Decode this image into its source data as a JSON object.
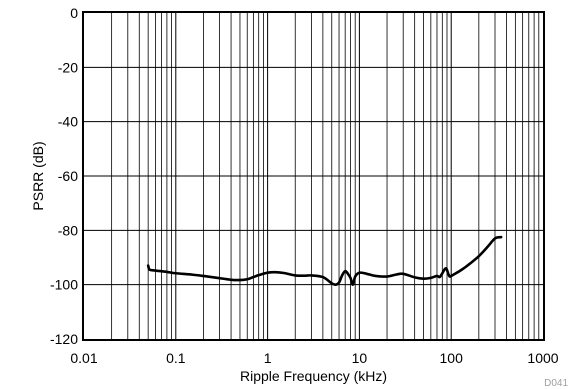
{
  "chart_data": {
    "type": "line",
    "title": "",
    "xlabel": "Ripple Frequency (kHz)",
    "ylabel": "PSRR (dB)",
    "xscale": "log",
    "xlim": [
      0.01,
      1000
    ],
    "ylim": [
      -120,
      0
    ],
    "x_ticks": [
      0.01,
      0.1,
      1,
      10,
      100,
      1000
    ],
    "x_tick_labels": [
      "0.01",
      "0.1",
      "1",
      "10",
      "100",
      "1000"
    ],
    "y_ticks": [
      0,
      -20,
      -40,
      -60,
      -80,
      -100,
      -120
    ],
    "y_tick_labels": [
      "0",
      "-20",
      "-40",
      "-60",
      "-80",
      "-100",
      "-120"
    ],
    "grid": true,
    "legend": "none",
    "series": [
      {
        "color": "#000000",
        "x": [
          0.05,
          0.052,
          0.06,
          0.08,
          0.1,
          0.15,
          0.2,
          0.3,
          0.4,
          0.5,
          0.6,
          0.7,
          0.8,
          1,
          1.2,
          1.5,
          2,
          2.5,
          3,
          4,
          5,
          5.5,
          6,
          6.5,
          7,
          7.5,
          8,
          8.5,
          9,
          10,
          12,
          15,
          20,
          25,
          30,
          40,
          50,
          60,
          70,
          75,
          80,
          85,
          88,
          90,
          93,
          96,
          100,
          110,
          130,
          150,
          200,
          250,
          300,
          350
        ],
        "y": [
          -93,
          -94.5,
          -94.8,
          -95.3,
          -95.8,
          -96.3,
          -96.8,
          -97.6,
          -98.2,
          -98.3,
          -98.0,
          -97.2,
          -96.5,
          -95.6,
          -95.4,
          -95.7,
          -96.6,
          -96.7,
          -96.6,
          -97.2,
          -99.5,
          -100.0,
          -99.2,
          -96.5,
          -95.0,
          -96.0,
          -97.5,
          -100.0,
          -97.0,
          -95.6,
          -96.0,
          -96.8,
          -97.0,
          -96.3,
          -96.0,
          -97.3,
          -97.8,
          -97.5,
          -96.8,
          -97.2,
          -95.8,
          -94.3,
          -94.0,
          -94.6,
          -96.0,
          -97.0,
          -96.8,
          -96.0,
          -94.5,
          -93.0,
          -89.5,
          -86.0,
          -83.0,
          -82.5
        ]
      }
    ]
  },
  "figure_code": "D041"
}
